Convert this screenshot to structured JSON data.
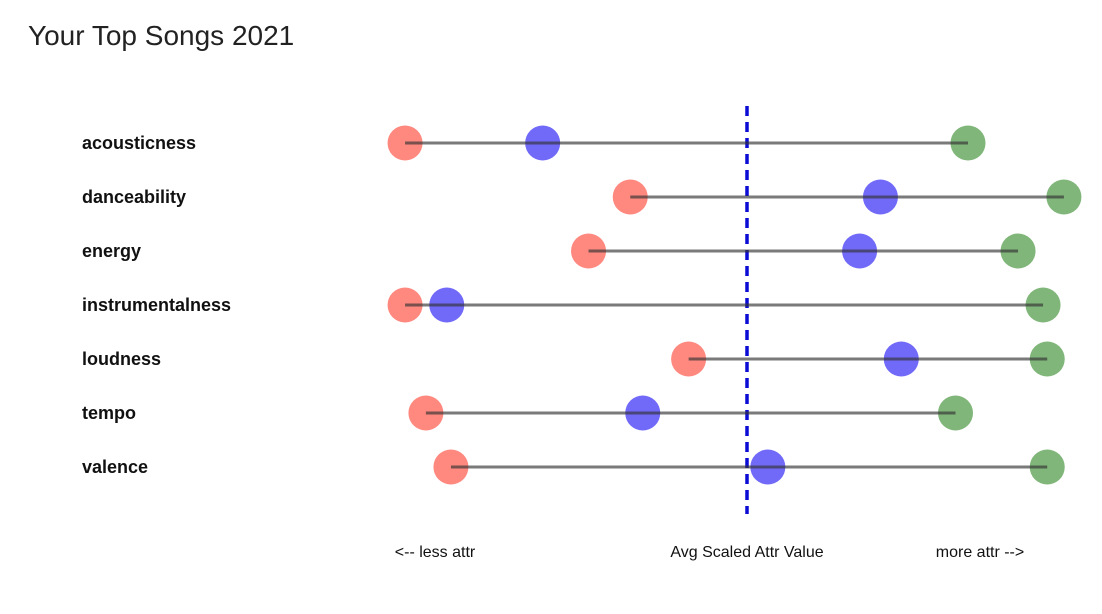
{
  "chart_data": {
    "type": "dumbbell",
    "title": "Your Top Songs 2021",
    "categories": [
      "acousticness",
      "danceability",
      "energy",
      "instrumentalness",
      "loudness",
      "tempo",
      "valence"
    ],
    "series": [
      {
        "color": "#ff5a4e",
        "values": [
          -0.82,
          -0.28,
          -0.38,
          -0.82,
          -0.14,
          -0.77,
          -0.71
        ]
      },
      {
        "color": "#3a2ff5",
        "values": [
          -0.49,
          0.32,
          0.27,
          -0.72,
          0.37,
          -0.25,
          0.05
        ]
      },
      {
        "color": "#4f9a45",
        "values": [
          0.53,
          0.76,
          0.65,
          0.71,
          0.72,
          0.5,
          0.72
        ]
      }
    ],
    "reference_line": {
      "value": 0,
      "label": "Avg Scaled Attr Value",
      "color": "#0b0bd6",
      "style": "dashed"
    },
    "xlim": [
      -1,
      1
    ],
    "axis_notes": {
      "left": "<-- less attr",
      "center": "Avg Scaled Attr Value",
      "right": "more attr -->"
    },
    "grid": false,
    "legend": "none"
  }
}
